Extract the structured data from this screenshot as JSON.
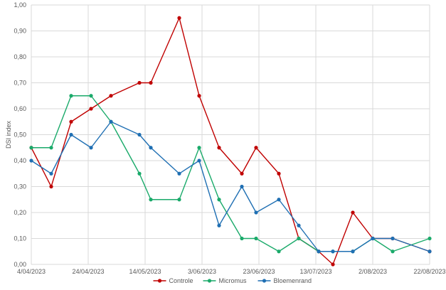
{
  "chart_data": {
    "type": "line",
    "title": "",
    "xlabel": "",
    "ylabel": "DSI index",
    "ylim": [
      0,
      1
    ],
    "y_ticks": [
      "0,00",
      "0,10",
      "0,20",
      "0,30",
      "0,40",
      "0,50",
      "0,60",
      "0,70",
      "0,80",
      "0,90",
      "1,00"
    ],
    "x_range": [
      "2023-04-04",
      "2023-08-22"
    ],
    "x_ticks": [
      {
        "date": "2023-04-04",
        "label": "4/04/2023"
      },
      {
        "date": "2023-04-24",
        "label": "24/04/2023"
      },
      {
        "date": "2023-05-14",
        "label": "14/05/2023"
      },
      {
        "date": "2023-06-03",
        "label": "3/06/2023"
      },
      {
        "date": "2023-06-23",
        "label": "23/06/2023"
      },
      {
        "date": "2023-07-13",
        "label": "13/07/2023"
      },
      {
        "date": "2023-08-02",
        "label": "2/08/2023"
      },
      {
        "date": "2023-08-22",
        "label": "22/08/2023"
      }
    ],
    "grid": true,
    "legend_position": "bottom",
    "series": [
      {
        "name": "Controle",
        "color": "#c00000",
        "points": [
          [
            "2023-04-04",
            0.45
          ],
          [
            "2023-04-11",
            0.3
          ],
          [
            "2023-04-18",
            0.55
          ],
          [
            "2023-04-25",
            0.6
          ],
          [
            "2023-05-02",
            0.65
          ],
          [
            "2023-05-12",
            0.7
          ],
          [
            "2023-05-16",
            0.7
          ],
          [
            "2023-05-26",
            0.95
          ],
          [
            "2023-06-02",
            0.65
          ],
          [
            "2023-06-09",
            0.45
          ],
          [
            "2023-06-17",
            0.35
          ],
          [
            "2023-06-22",
            0.45
          ],
          [
            "2023-06-30",
            0.35
          ],
          [
            "2023-07-07",
            0.1
          ],
          [
            "2023-07-14",
            0.05
          ],
          [
            "2023-07-19",
            0.0
          ],
          [
            "2023-07-26",
            0.2
          ],
          [
            "2023-08-02",
            0.1
          ],
          [
            "2023-08-09",
            0.1
          ],
          [
            "2023-08-22",
            0.05
          ]
        ]
      },
      {
        "name": "Micromus",
        "color": "#1aaa6a",
        "points": [
          [
            "2023-04-04",
            0.45
          ],
          [
            "2023-04-11",
            0.45
          ],
          [
            "2023-04-18",
            0.65
          ],
          [
            "2023-04-25",
            0.65
          ],
          [
            "2023-05-02",
            0.55
          ],
          [
            "2023-05-12",
            0.35
          ],
          [
            "2023-05-16",
            0.25
          ],
          [
            "2023-05-26",
            0.25
          ],
          [
            "2023-06-02",
            0.45
          ],
          [
            "2023-06-09",
            0.25
          ],
          [
            "2023-06-17",
            0.1
          ],
          [
            "2023-06-22",
            0.1
          ],
          [
            "2023-06-30",
            0.05
          ],
          [
            "2023-07-07",
            0.1
          ],
          [
            "2023-07-14",
            0.05
          ],
          [
            "2023-07-19",
            0.05
          ],
          [
            "2023-07-26",
            0.05
          ],
          [
            "2023-08-02",
            0.1
          ],
          [
            "2023-08-09",
            0.05
          ],
          [
            "2023-08-22",
            0.1
          ]
        ]
      },
      {
        "name": "Bloemenrand",
        "color": "#1f6fb3",
        "points": [
          [
            "2023-04-04",
            0.4
          ],
          [
            "2023-04-11",
            0.35
          ],
          [
            "2023-04-18",
            0.5
          ],
          [
            "2023-04-25",
            0.45
          ],
          [
            "2023-05-02",
            0.55
          ],
          [
            "2023-05-12",
            0.5
          ],
          [
            "2023-05-16",
            0.45
          ],
          [
            "2023-05-26",
            0.35
          ],
          [
            "2023-06-02",
            0.4
          ],
          [
            "2023-06-09",
            0.15
          ],
          [
            "2023-06-17",
            0.3
          ],
          [
            "2023-06-22",
            0.2
          ],
          [
            "2023-06-30",
            0.25
          ],
          [
            "2023-07-07",
            0.15
          ],
          [
            "2023-07-14",
            0.05
          ],
          [
            "2023-07-19",
            0.05
          ],
          [
            "2023-07-26",
            0.05
          ],
          [
            "2023-08-02",
            0.1
          ],
          [
            "2023-08-09",
            0.1
          ],
          [
            "2023-08-22",
            0.05
          ]
        ]
      }
    ]
  }
}
